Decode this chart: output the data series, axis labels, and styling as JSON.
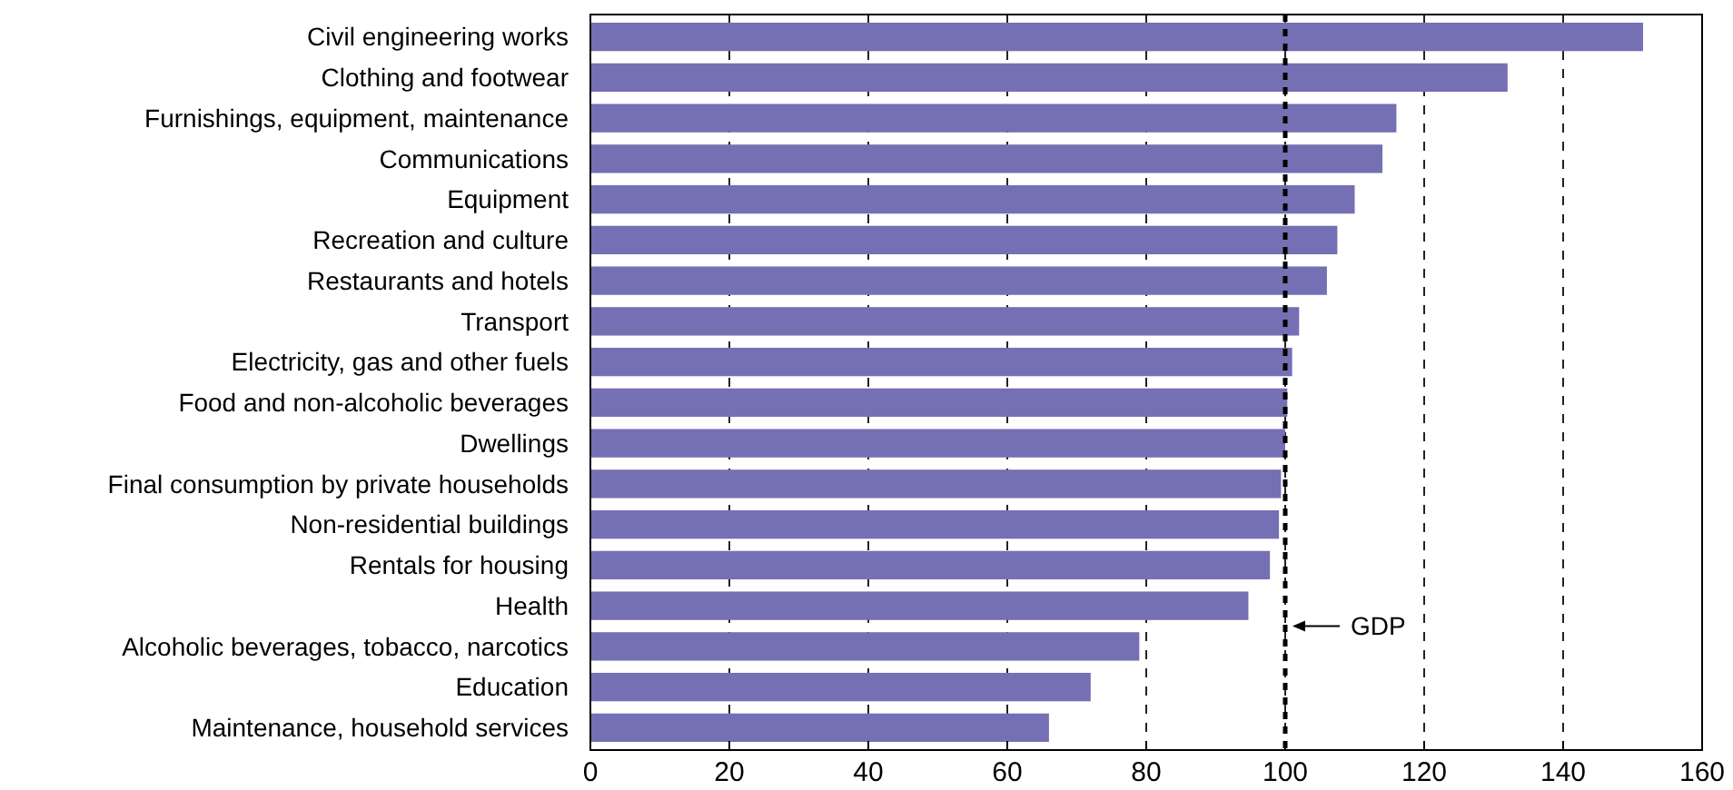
{
  "chart_data": {
    "type": "bar",
    "orientation": "horizontal",
    "categories": [
      "Civil engineering works",
      "Clothing and footwear",
      "Furnishings, equipment, maintenance",
      "Communications",
      "Equipment",
      "Recreation and culture",
      "Restaurants and hotels",
      "Transport",
      "Electricity, gas and other fuels",
      "Food and non-alcoholic beverages",
      "Dwellings",
      "Final consumption by private households",
      "Non-residential buildings",
      "Rentals for housing",
      "Health",
      "Alcoholic beverages, tobacco, narcotics",
      "Education",
      "Maintenance, household services"
    ],
    "values": [
      151.5,
      132,
      116,
      114,
      110,
      107.5,
      106,
      102,
      101,
      100.3,
      100,
      99.4,
      99.1,
      97.8,
      94.7,
      79,
      72,
      66
    ],
    "color": "#7570b3",
    "xlim": [
      0,
      160
    ],
    "xticks": [
      0,
      20,
      40,
      60,
      80,
      100,
      120,
      140,
      160
    ],
    "grid": "x",
    "ref_lines": [
      {
        "axis": "x",
        "value": 100,
        "label": "GDP",
        "line_style": "dashed"
      }
    ]
  }
}
